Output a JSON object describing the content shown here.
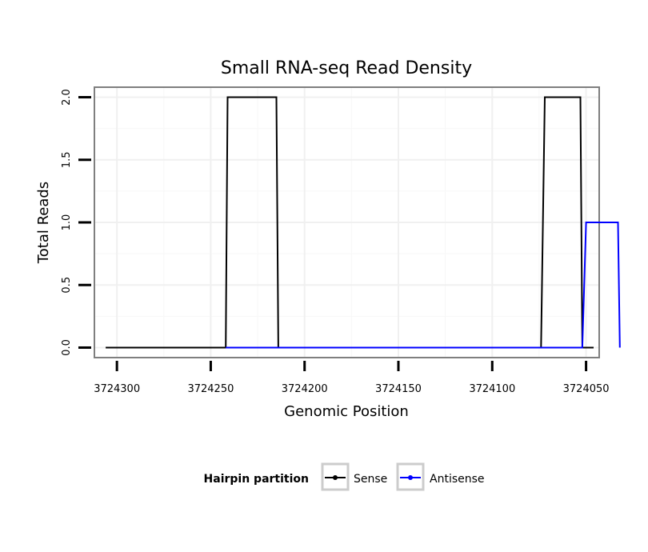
{
  "chart_data": {
    "type": "line",
    "title": "Small RNA-seq Read Density",
    "xlabel": "Genomic Position",
    "ylabel": "Total Reads",
    "xlim": [
      3724312,
      3724043
    ],
    "x_reversed": true,
    "ylim": [
      -0.08,
      2.08
    ],
    "x_ticks": [
      3724300,
      3724250,
      3724200,
      3724150,
      3724100,
      3724050
    ],
    "x_tick_labels": [
      "3724300",
      "3724250",
      "3724200",
      "3724150",
      "3724100",
      "3724050"
    ],
    "y_ticks": [
      0.0,
      0.5,
      1.0,
      1.5,
      2.0
    ],
    "y_tick_labels": [
      "0.0",
      "0.5",
      "1.0",
      "1.5",
      "2.0"
    ],
    "grid": true,
    "legend": {
      "title": "Hairpin partition",
      "position": "bottom"
    },
    "series": [
      {
        "name": "Sense",
        "color": "#000000",
        "x": [
          3724306,
          3724242,
          3724241,
          3724215,
          3724214,
          3724074,
          3724072,
          3724053,
          3724052,
          3724046
        ],
        "y": [
          0,
          0,
          2,
          2,
          0,
          0,
          2,
          2,
          0,
          0
        ]
      },
      {
        "name": "Antisense",
        "color": "#0000ff",
        "x": [
          3724242,
          3724214,
          3724072,
          3724052,
          3724050,
          3724033,
          3724032
        ],
        "y": [
          0,
          0,
          0,
          0,
          1,
          1,
          0
        ]
      }
    ]
  }
}
